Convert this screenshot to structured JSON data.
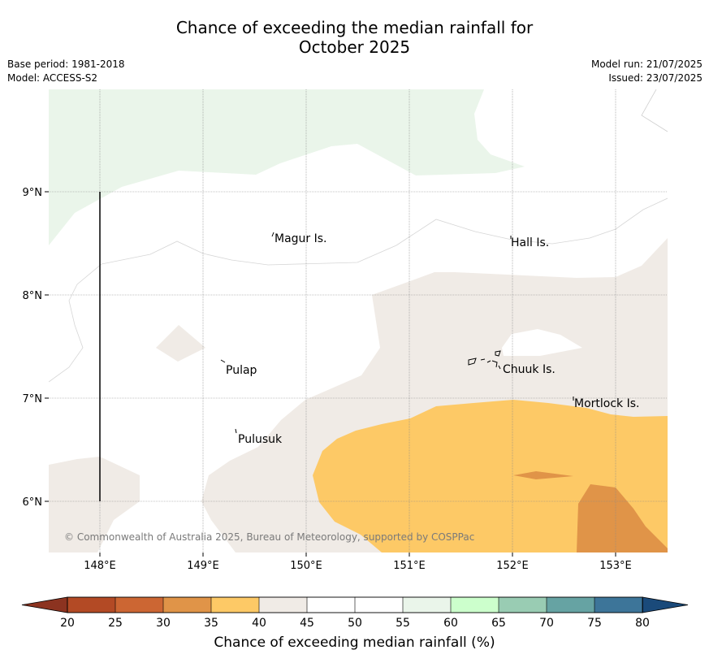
{
  "title_line1": "Chance of exceeding the median rainfall for",
  "title_line2": "October 2025",
  "base_period": "Base period: 1981-2018",
  "model": "Model: ACCESS-S2",
  "model_run": "Model run: 21/07/2025",
  "issued": "Issued: 23/07/2025",
  "copyright": "© Commonwealth of Australia 2025, Bureau of Meteorology, supported by COSPPac",
  "lat_labels": [
    "9°N",
    "8°N",
    "7°N",
    "6°N"
  ],
  "lon_labels": [
    "148°E",
    "149°E",
    "150°E",
    "151°E",
    "152°E",
    "153°E"
  ],
  "places": [
    "Magur Is.",
    "Hall Is.",
    "Pulap",
    "Chuuk Is.",
    "Mortlock Is.",
    "Pulusuk"
  ],
  "colorbar": {
    "label": "Chance of exceeding median rainfall (%)",
    "ticks": [
      "20",
      "25",
      "30",
      "35",
      "40",
      "45",
      "50",
      "55",
      "60",
      "65",
      "70",
      "75",
      "80"
    ],
    "colors": [
      "#b34a25",
      "#cc6633",
      "#e09448",
      "#fdc966",
      "#f0ebe6",
      "#ffffff",
      "#ffffff",
      "#eaf5ea",
      "#ccffcc",
      "#99ccb3",
      "#66a3a3",
      "#3d7599"
    ],
    "under_color": "#8c3320",
    "over_color": "#1a4a7a"
  },
  "region_colors": {
    "band_40_45": "#f0ebe6",
    "band_35_40": "#fdc966",
    "band_30_35": "#e09448",
    "band_55_60": "#eaf5ea"
  }
}
